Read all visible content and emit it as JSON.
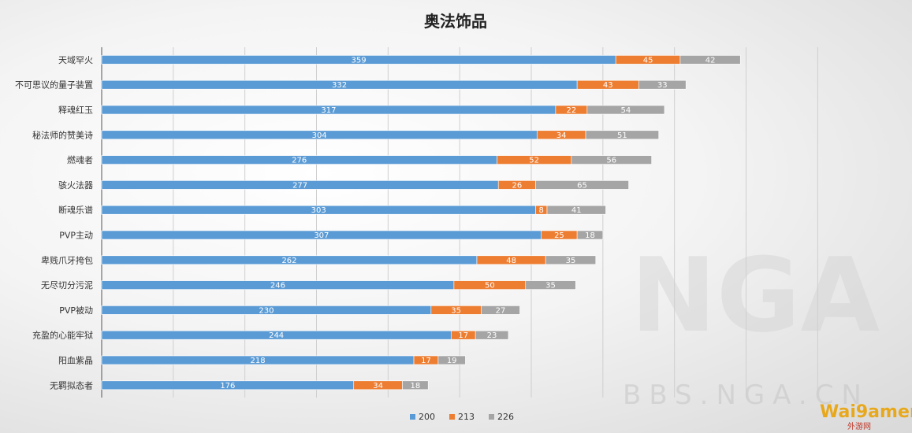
{
  "chart_data": {
    "type": "bar",
    "orientation": "horizontal",
    "stacked": true,
    "title": "奥法饰品",
    "categories": [
      "天域罕火",
      "不可思议的量子装置",
      "释魂红玉",
      "秘法师的赞美诗",
      "燃魂者",
      "骇火法器",
      "断魂乐谱",
      "PVP主动",
      "卑贱爪牙挎包",
      "无尽切分污泥",
      "PVP被动",
      "充盈的心能牢狱",
      "阳血紫晶",
      "无羁拟态者"
    ],
    "series": [
      {
        "name": "200",
        "color": "#5b9bd5",
        "values": [
          359,
          332,
          317,
          304,
          276,
          277,
          303,
          307,
          262,
          246,
          230,
          244,
          218,
          176
        ]
      },
      {
        "name": "213",
        "color": "#ed7d31",
        "values": [
          45,
          43,
          22,
          34,
          52,
          26,
          8,
          25,
          48,
          50,
          35,
          17,
          17,
          34
        ]
      },
      {
        "name": "226",
        "color": "#a5a5a5",
        "values": [
          42,
          33,
          54,
          51,
          56,
          65,
          41,
          18,
          35,
          35,
          27,
          23,
          19,
          18
        ]
      }
    ],
    "xlim": [
      0,
      500
    ],
    "grid": true,
    "legend": "bottom"
  },
  "watermark": {
    "text": "BBS.NGA.CN",
    "logo": "NGA",
    "corner_logo": "Wai9amer",
    "corner_sub": "外游网"
  }
}
